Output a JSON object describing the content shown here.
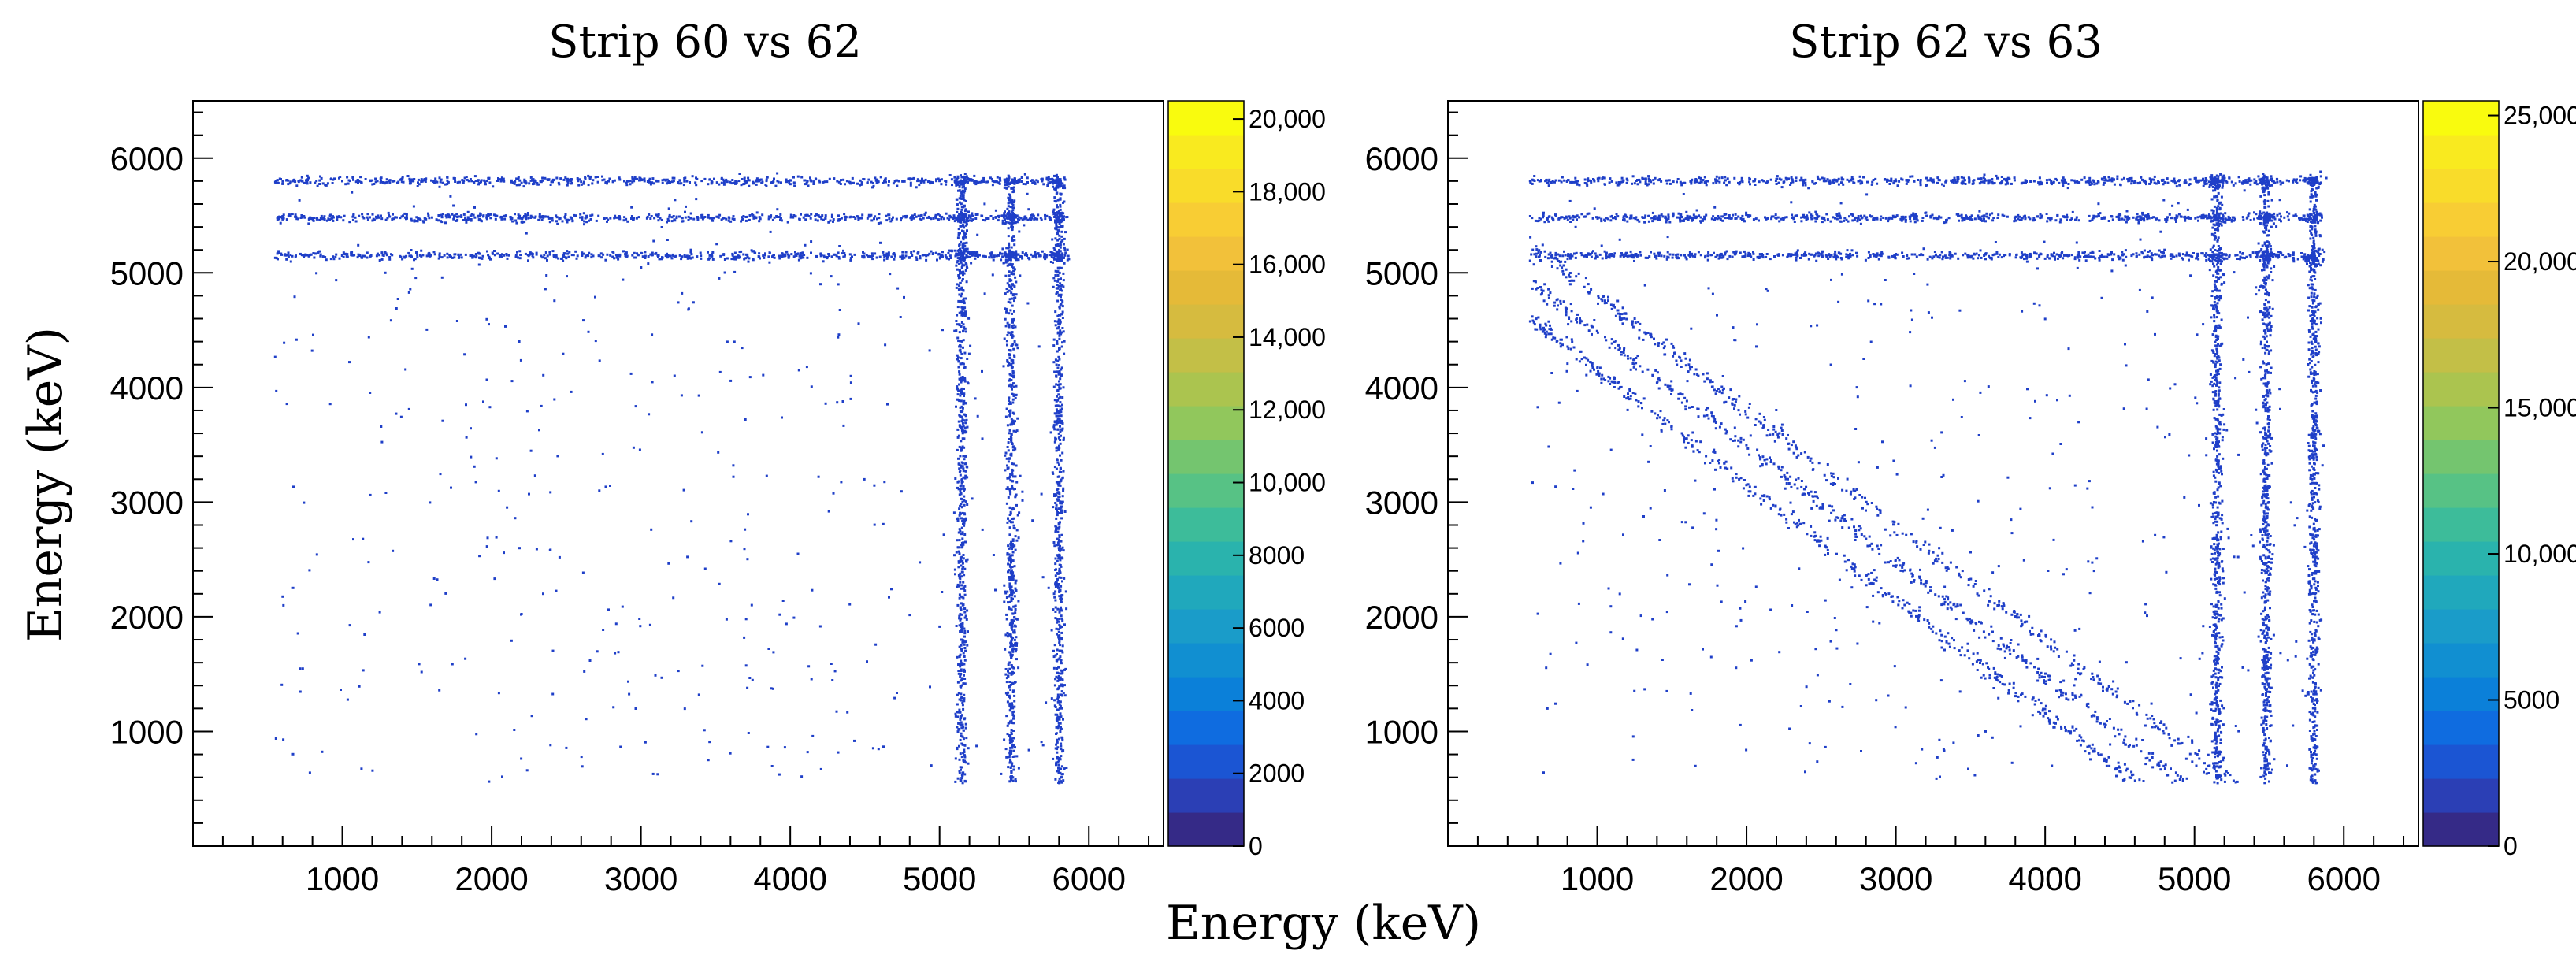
{
  "figure": {
    "xlabel": "Energy (keV)",
    "ylabel": "Energy (keV)"
  },
  "colors": {
    "points": "#1f3fc8",
    "palette": [
      "#352a87",
      "#2b3fb5",
      "#1b55d3",
      "#0f6ce0",
      "#0b80d9",
      "#118fd1",
      "#1a9cc9",
      "#20a8bc",
      "#2ab3ad",
      "#3dbc9a",
      "#57c285",
      "#74c56f",
      "#91c75c",
      "#abc44f",
      "#c3bf47",
      "#d6bb3f",
      "#e5ba38",
      "#f2c13a",
      "#f8cd34",
      "#f9dc2a",
      "#f9ea1f",
      "#f9fb0e"
    ]
  },
  "chart_data": [
    {
      "type": "heatmap",
      "title": "Strip 60 vs 62",
      "xlabel": "Energy (keV)",
      "ylabel": "Energy (keV)",
      "xlim": [
        0,
        6500
      ],
      "ylim": [
        0,
        6500
      ],
      "xticks": [
        "1000",
        "2000",
        "3000",
        "4000",
        "5000",
        "6000"
      ],
      "yticks": [
        "1000",
        "2000",
        "3000",
        "4000",
        "5000",
        "6000"
      ],
      "peaks_keV": [
        5150,
        5480,
        5800
      ],
      "coincidence_band_range_keV": [
        550,
        5800
      ],
      "diagonal_bands_sum_keV": [],
      "colorbar": {
        "min": 0,
        "max": 20500,
        "ticks": [
          "0",
          "2000",
          "4000",
          "6000",
          "8000",
          "10,000",
          "12,000",
          "14,000",
          "16,000",
          "18,000",
          "20,000"
        ]
      }
    },
    {
      "type": "heatmap",
      "title": "Strip 62 vs 63",
      "xlabel": "Energy (keV)",
      "ylabel": "Energy (keV)",
      "xlim": [
        0,
        6500
      ],
      "ylim": [
        0,
        6500
      ],
      "xticks": [
        "1000",
        "2000",
        "3000",
        "4000",
        "5000",
        "6000"
      ],
      "yticks": [
        "1000",
        "2000",
        "3000",
        "4000",
        "5000",
        "6000"
      ],
      "peaks_keV": [
        5150,
        5480,
        5800
      ],
      "coincidence_band_range_keV": [
        550,
        5800
      ],
      "diagonal_bands_sum_keV": [
        5150,
        5480,
        5800
      ],
      "colorbar": {
        "min": 0,
        "max": 25500,
        "ticks": [
          "0",
          "5000",
          "10,000",
          "15,000",
          "20,000",
          "25,000"
        ]
      }
    }
  ]
}
